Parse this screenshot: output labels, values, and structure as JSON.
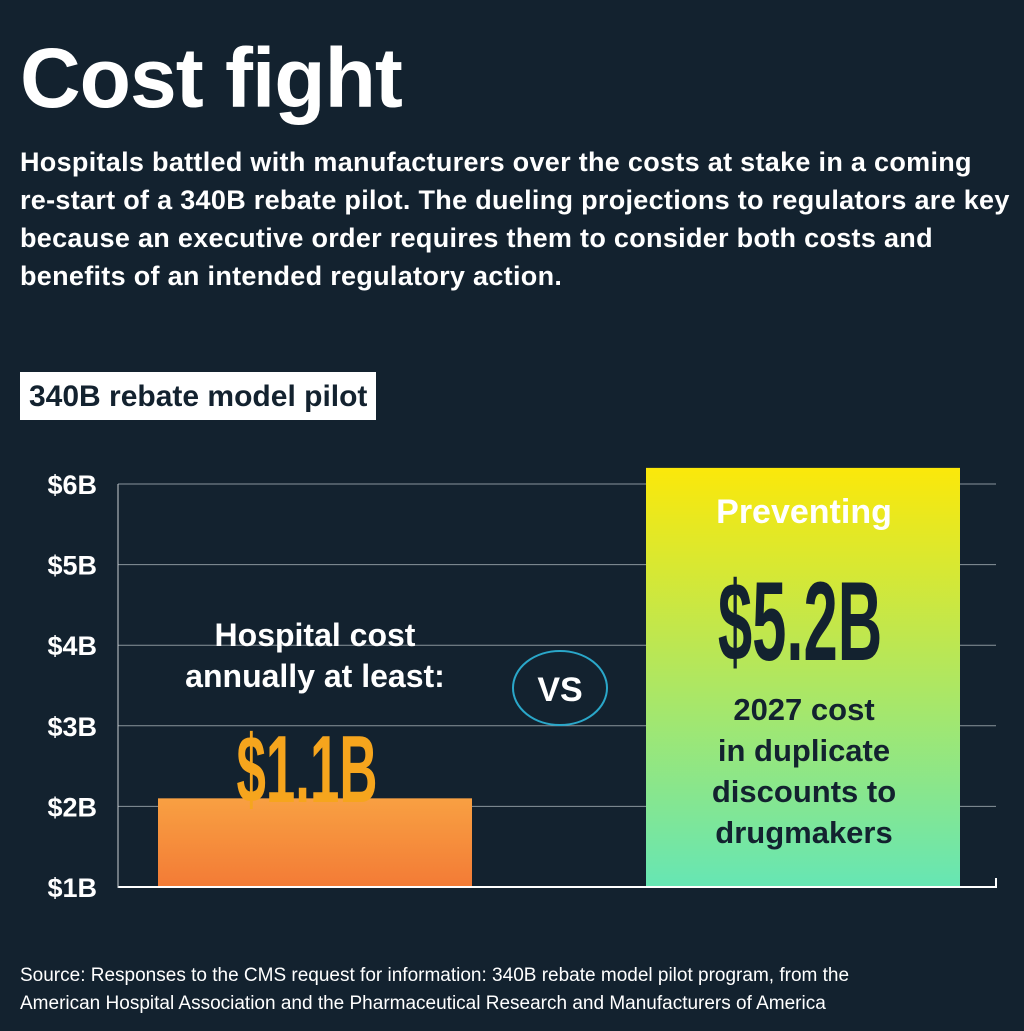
{
  "header": {
    "title": "Cost fight",
    "description": "Hospitals battled with manufacturers over the costs at stake in a coming re-start of a 340B rebate pilot. The dueling projections to regulators are key because an executive order requires them to consider both costs and benefits of an intended regulatory action.",
    "chip_label": "340B rebate model pilot"
  },
  "chart_data": {
    "type": "bar",
    "categories": [
      "Hospital cost annually at least:",
      "Preventing"
    ],
    "values": [
      1.1,
      5.2
    ],
    "value_labels": [
      "$1.1B",
      "$5.2B"
    ],
    "tick_labels": [
      "$1B",
      "$2B",
      "$3B",
      "$4B",
      "$5B",
      "$6B"
    ],
    "ylim": [
      1,
      6
    ],
    "grid": true,
    "annotations": {
      "bar1_caption_line1": "Hospital cost",
      "bar1_caption_line2": "annually at least:",
      "bar2_caption": "Preventing",
      "bar2_sub_lines": [
        "2027 cost",
        "in duplicate",
        "discounts to",
        "drugmakers"
      ],
      "vs": "VS"
    },
    "colors": {
      "bar1_top": "#f8a042",
      "bar1_bottom": "#f37b36",
      "bar1_label": "#f6a51d",
      "bar2_top": "#fbe80a",
      "bar2_bottom": "#66e6b4",
      "vs_ring": "#2aa7c9",
      "background": "#13222f"
    }
  },
  "footer": {
    "source_line1": "Source: Responses to the CMS request for information: 340B rebate model pilot program, from the",
    "source_line2": "American Hospital Association and the Pharmaceutical Research and Manufacturers of America"
  }
}
